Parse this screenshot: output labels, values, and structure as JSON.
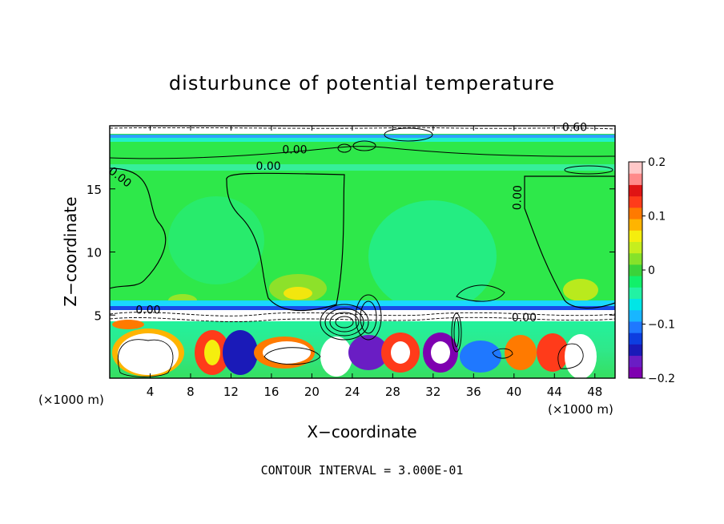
{
  "chart_data": {
    "type": "heatmap",
    "title": "disturbunce of potential temperature",
    "xlabel": "X−coordinate",
    "ylabel": "Z−coordinate",
    "x_unit": "(×1000 m)",
    "x_unit_right": "(×1000 m)",
    "xlim": [
      0,
      50
    ],
    "ylim": [
      0,
      20
    ],
    "x_ticks": [
      4,
      8,
      12,
      16,
      20,
      24,
      28,
      32,
      36,
      40,
      44,
      48
    ],
    "y_ticks": [
      5,
      10,
      15
    ],
    "colorbar": {
      "range": [
        -0.2,
        0.2
      ],
      "tick_values": [
        0.2,
        0.1,
        0,
        -0.1,
        -0.2
      ],
      "tick_labels": [
        "0.2",
        "0.1",
        "0",
        "−0.1",
        "−0.2"
      ],
      "colors": [
        "#7e00b0",
        "#6a1dc4",
        "#1a1ab8",
        "#0d3ee0",
        "#1f78ff",
        "#18b6ff",
        "#00e6e6",
        "#22f2a4",
        "#11f06a",
        "#3ad33a",
        "#86e22a",
        "#c6ee1e",
        "#f5ee0e",
        "#ffb400",
        "#ff7a00",
        "#ff3b1a",
        "#e01414",
        "#ff8a8a",
        "#ffc8c8"
      ]
    },
    "contour_interval": "CONTOUR INTERVAL = 3.000E-01",
    "contour_labels": [
      {
        "text": "0.00",
        "x": 0.8,
        "z": 15.7,
        "rotate": 38
      },
      {
        "text": "0.00",
        "x": 18.3,
        "z": 17.8,
        "rotate": 0
      },
      {
        "text": "0.00",
        "x": 15.7,
        "z": 16.5,
        "rotate": 0
      },
      {
        "text": "0.00",
        "x": 40.7,
        "z": 14.3,
        "rotate": -88
      },
      {
        "text": "0.60",
        "x": 46.0,
        "z": 19.6,
        "rotate": 0
      },
      {
        "text": "0.00",
        "x": 41.0,
        "z": 4.5,
        "rotate": 0
      },
      {
        "text": "0.00",
        "x": 3.8,
        "z": 5.1,
        "rotate": 0
      }
    ]
  }
}
